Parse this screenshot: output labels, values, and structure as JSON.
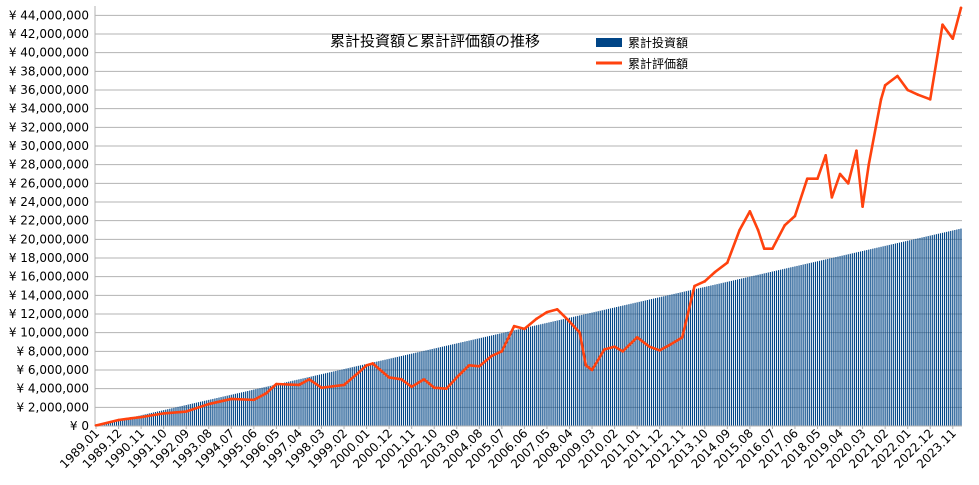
{
  "chart_data": {
    "type": "bar",
    "title": "累計投資額と累計評価額の推移",
    "xlabel": "",
    "ylabel": "",
    "legend_position": "top-center",
    "grid": true,
    "ylim": [
      0,
      45000000
    ],
    "y_ticks": [
      0,
      2000000,
      4000000,
      6000000,
      8000000,
      10000000,
      12000000,
      14000000,
      16000000,
      18000000,
      20000000,
      22000000,
      24000000,
      26000000,
      28000000,
      30000000,
      32000000,
      34000000,
      36000000,
      38000000,
      40000000,
      42000000,
      44000000
    ],
    "y_tick_labels": [
      "¥ 0",
      "¥ 2,000,000",
      "¥ 4,000,000",
      "¥ 6,000,000",
      "¥ 8,000,000",
      "¥ 10,000,000",
      "¥ 12,000,000",
      "¥ 14,000,000",
      "¥ 16,000,000",
      "¥ 18,000,000",
      "¥ 20,000,000",
      "¥ 22,000,000",
      "¥ 24,000,000",
      "¥ 26,000,000",
      "¥ 28,000,000",
      "¥ 30,000,000",
      "¥ 32,000,000",
      "¥ 34,000,000",
      "¥ 36,000,000",
      "¥ 38,000,000",
      "¥ 40,000,000",
      "¥ 42,000,000",
      "¥ 44,000,000"
    ],
    "x_start": "1989.01",
    "x_end": "2024.03",
    "x_tick_labels": [
      "1989.01",
      "1989.12",
      "1990.11",
      "1991.10",
      "1992.09",
      "1993.08",
      "1994.07",
      "1995.06",
      "1996.05",
      "1997.04",
      "1998.03",
      "1999.02",
      "2000.01",
      "2000.12",
      "2001.11",
      "2002.10",
      "2003.09",
      "2004.08",
      "2005.07",
      "2006.06",
      "2007.05",
      "2008.04",
      "2009.03",
      "2010.02",
      "2011.01",
      "2011.12",
      "2012.11",
      "2013.10",
      "2014.09",
      "2015.08",
      "2016.07",
      "2017.06",
      "2018.05",
      "2019.04",
      "2020.03",
      "2021.02",
      "2022.01",
      "2022.12",
      "2023.11"
    ],
    "series": [
      {
        "name": "累計投資額",
        "type": "bar",
        "color": "#004586",
        "start_value": 50000,
        "monthly_increment": 50000
      },
      {
        "name": "累計評価額",
        "type": "line",
        "color": "#ff420e",
        "points": [
          [
            "1989.01",
            50000
          ],
          [
            "1989.12",
            640000
          ],
          [
            "1990.06",
            820000
          ],
          [
            "1990.11",
            950000
          ],
          [
            "1991.10",
            1350000
          ],
          [
            "1992.09",
            1550000
          ],
          [
            "1993.08",
            2350000
          ],
          [
            "1994.07",
            2900000
          ],
          [
            "1995.06",
            2800000
          ],
          [
            "1995.12",
            3500000
          ],
          [
            "1996.05",
            4500000
          ],
          [
            "1997.04",
            4400000
          ],
          [
            "1997.09",
            5000000
          ],
          [
            "1998.03",
            4100000
          ],
          [
            "1999.02",
            4400000
          ],
          [
            "1999.09",
            5700000
          ],
          [
            "2000.01",
            6500000
          ],
          [
            "2000.04",
            6700000
          ],
          [
            "2000.12",
            5200000
          ],
          [
            "2001.06",
            5000000
          ],
          [
            "2001.11",
            4200000
          ],
          [
            "2002.05",
            5000000
          ],
          [
            "2002.10",
            4100000
          ],
          [
            "2003.04",
            4000000
          ],
          [
            "2003.09",
            5200000
          ],
          [
            "2004.03",
            6500000
          ],
          [
            "2004.08",
            6400000
          ],
          [
            "2005.02",
            7500000
          ],
          [
            "2005.07",
            8000000
          ],
          [
            "2006.01",
            10700000
          ],
          [
            "2006.06",
            10400000
          ],
          [
            "2006.12",
            11500000
          ],
          [
            "2007.05",
            12200000
          ],
          [
            "2007.10",
            12500000
          ],
          [
            "2008.04",
            11200000
          ],
          [
            "2008.09",
            10000000
          ],
          [
            "2008.12",
            6500000
          ],
          [
            "2009.03",
            6000000
          ],
          [
            "2009.09",
            8200000
          ],
          [
            "2010.02",
            8500000
          ],
          [
            "2010.06",
            8000000
          ],
          [
            "2011.01",
            9500000
          ],
          [
            "2011.07",
            8500000
          ],
          [
            "2011.12",
            8100000
          ],
          [
            "2012.05",
            8700000
          ],
          [
            "2012.11",
            9500000
          ],
          [
            "2013.05",
            15000000
          ],
          [
            "2013.10",
            15500000
          ],
          [
            "2014.03",
            16500000
          ],
          [
            "2014.09",
            17500000
          ],
          [
            "2015.03",
            21000000
          ],
          [
            "2015.08",
            23000000
          ],
          [
            "2015.12",
            21000000
          ],
          [
            "2016.03",
            19000000
          ],
          [
            "2016.07",
            19000000
          ],
          [
            "2017.01",
            21500000
          ],
          [
            "2017.06",
            22500000
          ],
          [
            "2017.12",
            26500000
          ],
          [
            "2018.05",
            26500000
          ],
          [
            "2018.09",
            29000000
          ],
          [
            "2018.12",
            24500000
          ],
          [
            "2019.04",
            27000000
          ],
          [
            "2019.08",
            26000000
          ],
          [
            "2019.12",
            29500000
          ],
          [
            "2020.03",
            23500000
          ],
          [
            "2020.06",
            28000000
          ],
          [
            "2020.12",
            35000000
          ],
          [
            "2021.02",
            36500000
          ],
          [
            "2021.08",
            37500000
          ],
          [
            "2022.01",
            36000000
          ],
          [
            "2022.06",
            35500000
          ],
          [
            "2022.12",
            35000000
          ],
          [
            "2023.06",
            43000000
          ],
          [
            "2023.11",
            41500000
          ],
          [
            "2024.03",
            44800000
          ]
        ]
      }
    ]
  }
}
